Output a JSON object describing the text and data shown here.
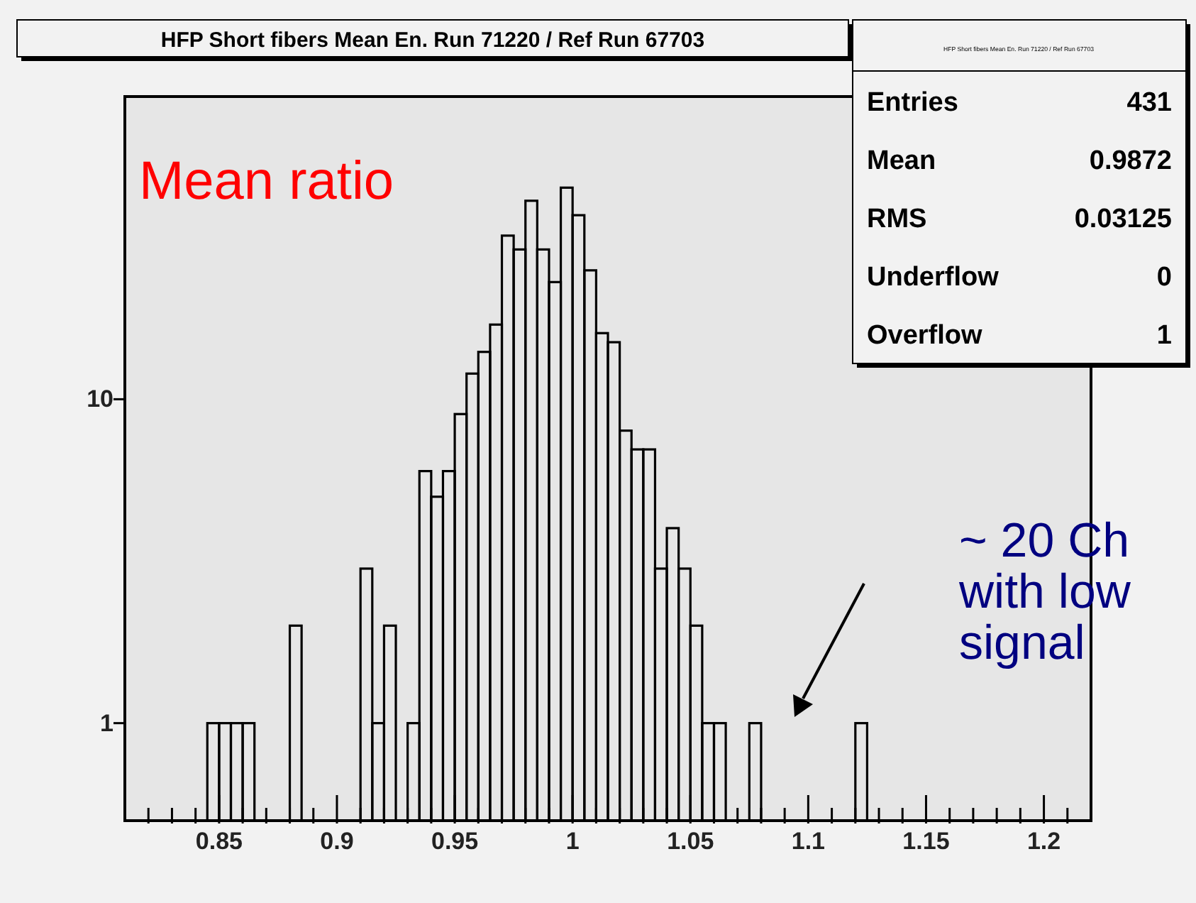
{
  "chart_data": {
    "type": "histogram",
    "title": "HFP Short fibers Mean En. Run 71220 / Ref Run 67703",
    "bins": [
      0.845,
      0.85,
      0.855,
      0.86,
      0.865,
      0.87,
      0.875,
      0.88,
      0.885,
      0.89,
      0.895,
      0.9,
      0.905,
      0.91,
      0.915,
      0.92,
      0.925,
      0.93,
      0.935,
      0.94,
      0.945,
      0.95,
      0.955,
      0.96,
      0.965,
      0.97,
      0.975,
      0.98,
      0.985,
      0.99,
      0.995,
      1.0,
      1.005,
      1.01,
      1.015,
      1.02,
      1.025,
      1.03,
      1.035,
      1.04,
      1.045,
      1.05,
      1.055,
      1.06,
      1.065,
      1.07,
      1.075,
      1.08,
      1.085,
      1.09,
      1.095,
      1.1,
      1.105,
      1.11,
      1.115,
      1.12,
      1.125
    ],
    "values": [
      1,
      1,
      1,
      1,
      null,
      null,
      null,
      2,
      null,
      null,
      null,
      null,
      null,
      3,
      1,
      2,
      null,
      1,
      6,
      5,
      6,
      9,
      12,
      14,
      17,
      32,
      29,
      41,
      29,
      23,
      45,
      37,
      25,
      16,
      15,
      8,
      7,
      7,
      3,
      4,
      3,
      2,
      1,
      1,
      null,
      null,
      1,
      null,
      null,
      null,
      null,
      null,
      null,
      null,
      null,
      1
    ],
    "color": "#000000",
    "log": "y",
    "xlim": [
      0.81,
      1.22
    ],
    "xticks": [
      {
        "value": 0.82,
        "label": null
      },
      {
        "value": 0.83,
        "label": null
      },
      {
        "value": 0.84,
        "label": null
      },
      0.85,
      {
        "value": 0.86,
        "label": null
      },
      {
        "value": 0.87,
        "label": null
      },
      {
        "value": 0.88,
        "label": null
      },
      {
        "value": 0.89,
        "label": null
      },
      0.9,
      {
        "value": 0.91,
        "label": null
      },
      {
        "value": 0.92,
        "label": null
      },
      {
        "value": 0.93,
        "label": null
      },
      {
        "value": 0.94,
        "label": null
      },
      0.95,
      {
        "value": 0.96,
        "label": null
      },
      {
        "value": 0.97,
        "label": null
      },
      {
        "value": 0.98,
        "label": null
      },
      {
        "value": 0.99,
        "label": null
      },
      1,
      {
        "value": 1.01,
        "label": null
      },
      {
        "value": 1.02,
        "label": null
      },
      {
        "value": 1.03,
        "label": null
      },
      {
        "value": 1.04,
        "label": null
      },
      1.05,
      {
        "value": 1.06,
        "label": null
      },
      {
        "value": 1.07,
        "label": null
      },
      {
        "value": 1.08,
        "label": null
      },
      {
        "value": 1.09,
        "label": null
      },
      1.1,
      {
        "value": 1.11,
        "label": null
      },
      {
        "value": 1.12,
        "label": null
      },
      {
        "value": 1.13,
        "label": null
      },
      {
        "value": 1.14,
        "label": null
      },
      1.15,
      {
        "value": 1.16,
        "label": null
      },
      {
        "value": 1.17,
        "label": null
      },
      {
        "value": 1.18,
        "label": null
      },
      {
        "value": 1.19,
        "label": null
      },
      1.2,
      {
        "value": 1.21,
        "label": null
      }
    ],
    "ylim": [
      0.5,
      86
    ],
    "yticks": [
      1,
      10
    ],
    "annotations": [
      "Mean ratio",
      "~ 20 Ch\nwith low\nsignal",
      "HFP Short fibers Mean En. Run 71220 / Ref Run 67703",
      "Entries 431",
      "Mean 0.9872",
      "RMS 0.03125",
      "Underflow 0",
      "Overflow 1"
    ]
  }
}
